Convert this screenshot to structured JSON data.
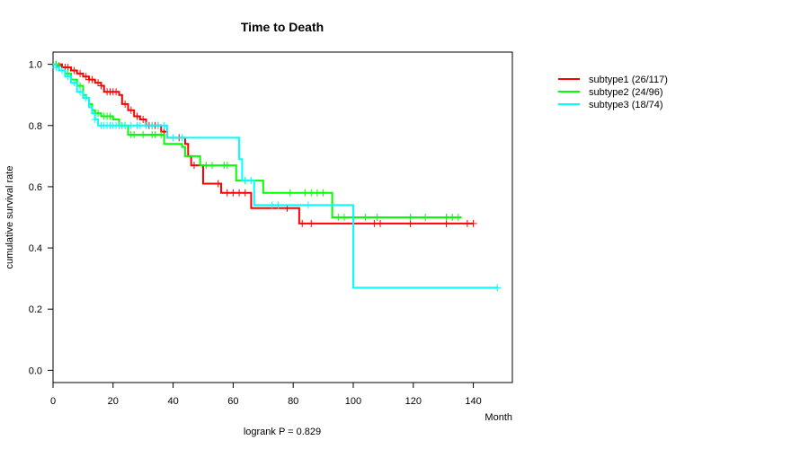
{
  "chart_data": {
    "type": "line",
    "title": "Time to Death",
    "xlabel": "Month",
    "ylabel": "cumulative survival rate",
    "footnote": "logrank P = 0.829",
    "xlim": [
      0,
      153
    ],
    "ylim": [
      -0.04,
      1.04
    ],
    "x_ticks": [
      0,
      20,
      40,
      60,
      80,
      100,
      120,
      140
    ],
    "y_ticks": [
      0.0,
      0.2,
      0.4,
      0.6,
      0.8,
      1.0
    ],
    "y_tick_labels": [
      "0.0",
      "0.2",
      "0.4",
      "0.6",
      "0.8",
      "1.0"
    ],
    "legend_position": "right",
    "series": [
      {
        "name": "subtype1",
        "legend_label": "subtype1 (26/117)",
        "color": "#ff0000",
        "steps": [
          [
            0,
            1.0
          ],
          [
            3,
            0.99
          ],
          [
            6,
            0.98
          ],
          [
            8,
            0.97
          ],
          [
            10,
            0.96
          ],
          [
            12,
            0.95
          ],
          [
            14,
            0.94
          ],
          [
            16,
            0.93
          ],
          [
            17,
            0.91
          ],
          [
            22,
            0.9
          ],
          [
            23,
            0.87
          ],
          [
            25,
            0.85
          ],
          [
            27,
            0.83
          ],
          [
            29,
            0.82
          ],
          [
            31,
            0.8
          ],
          [
            36,
            0.78
          ],
          [
            38,
            0.76
          ],
          [
            44,
            0.74
          ],
          [
            45,
            0.7
          ],
          [
            46,
            0.67
          ],
          [
            50,
            0.61
          ],
          [
            56,
            0.58
          ],
          [
            66,
            0.53
          ],
          [
            82,
            0.48
          ],
          [
            140,
            0.48
          ]
        ],
        "censored": [
          [
            1,
            1.0
          ],
          [
            2,
            0.995
          ],
          [
            4,
            0.99
          ],
          [
            5,
            0.99
          ],
          [
            7,
            0.98
          ],
          [
            9,
            0.97
          ],
          [
            11,
            0.96
          ],
          [
            12,
            0.95
          ],
          [
            13,
            0.95
          ],
          [
            15,
            0.94
          ],
          [
            16,
            0.93
          ],
          [
            18,
            0.91
          ],
          [
            19,
            0.91
          ],
          [
            20,
            0.91
          ],
          [
            21,
            0.91
          ],
          [
            24,
            0.87
          ],
          [
            26,
            0.85
          ],
          [
            28,
            0.83
          ],
          [
            30,
            0.82
          ],
          [
            32,
            0.8
          ],
          [
            33,
            0.8
          ],
          [
            34,
            0.8
          ],
          [
            35,
            0.8
          ],
          [
            37,
            0.78
          ],
          [
            42,
            0.76
          ],
          [
            47,
            0.67
          ],
          [
            55,
            0.61
          ],
          [
            58,
            0.58
          ],
          [
            60,
            0.58
          ],
          [
            62,
            0.58
          ],
          [
            64,
            0.58
          ],
          [
            78,
            0.53
          ],
          [
            83,
            0.48
          ],
          [
            86,
            0.48
          ],
          [
            107,
            0.48
          ],
          [
            109,
            0.48
          ],
          [
            119,
            0.48
          ],
          [
            131,
            0.48
          ],
          [
            138,
            0.48
          ],
          [
            140,
            0.48
          ]
        ]
      },
      {
        "name": "subtype2",
        "legend_label": "subtype2 (24/96)",
        "color": "#00ff00",
        "steps": [
          [
            0,
            1.0
          ],
          [
            2,
            0.98
          ],
          [
            4,
            0.97
          ],
          [
            6,
            0.95
          ],
          [
            8,
            0.93
          ],
          [
            10,
            0.9
          ],
          [
            11,
            0.89
          ],
          [
            12,
            0.87
          ],
          [
            13,
            0.85
          ],
          [
            14,
            0.84
          ],
          [
            16,
            0.83
          ],
          [
            20,
            0.82
          ],
          [
            22,
            0.8
          ],
          [
            25,
            0.77
          ],
          [
            32,
            0.77
          ],
          [
            37,
            0.74
          ],
          [
            43,
            0.73
          ],
          [
            44,
            0.7
          ],
          [
            49,
            0.67
          ],
          [
            61,
            0.62
          ],
          [
            70,
            0.58
          ],
          [
            93,
            0.5
          ],
          [
            136,
            0.5
          ]
        ],
        "censored": [
          [
            1,
            1.0
          ],
          [
            3,
            0.98
          ],
          [
            5,
            0.97
          ],
          [
            9,
            0.93
          ],
          [
            15,
            0.84
          ],
          [
            17,
            0.83
          ],
          [
            18,
            0.83
          ],
          [
            19,
            0.83
          ],
          [
            23,
            0.8
          ],
          [
            24,
            0.8
          ],
          [
            26,
            0.77
          ],
          [
            27,
            0.77
          ],
          [
            30,
            0.77
          ],
          [
            33,
            0.77
          ],
          [
            34,
            0.77
          ],
          [
            36,
            0.77
          ],
          [
            51,
            0.67
          ],
          [
            53,
            0.67
          ],
          [
            57,
            0.67
          ],
          [
            58,
            0.67
          ],
          [
            64,
            0.62
          ],
          [
            79,
            0.58
          ],
          [
            84,
            0.58
          ],
          [
            86,
            0.58
          ],
          [
            88,
            0.58
          ],
          [
            90,
            0.58
          ],
          [
            95,
            0.5
          ],
          [
            97,
            0.5
          ],
          [
            104,
            0.5
          ],
          [
            108,
            0.5
          ],
          [
            119,
            0.5
          ],
          [
            124,
            0.5
          ],
          [
            131,
            0.5
          ],
          [
            133,
            0.5
          ],
          [
            135,
            0.5
          ]
        ]
      },
      {
        "name": "subtype3",
        "legend_label": "subtype3 (18/74)",
        "color": "#00ffff",
        "steps": [
          [
            0,
            1.0
          ],
          [
            1,
            0.99
          ],
          [
            2,
            0.98
          ],
          [
            4,
            0.96
          ],
          [
            6,
            0.94
          ],
          [
            8,
            0.91
          ],
          [
            10,
            0.89
          ],
          [
            12,
            0.86
          ],
          [
            13,
            0.84
          ],
          [
            14,
            0.82
          ],
          [
            15,
            0.8
          ],
          [
            38,
            0.76
          ],
          [
            62,
            0.69
          ],
          [
            63,
            0.62
          ],
          [
            67,
            0.54
          ],
          [
            100,
            0.27
          ],
          [
            148,
            0.27
          ]
        ],
        "censored": [
          [
            1,
            0.99
          ],
          [
            3,
            0.98
          ],
          [
            5,
            0.96
          ],
          [
            7,
            0.94
          ],
          [
            9,
            0.91
          ],
          [
            11,
            0.89
          ],
          [
            14,
            0.82
          ],
          [
            16,
            0.8
          ],
          [
            17,
            0.8
          ],
          [
            18,
            0.8
          ],
          [
            19,
            0.8
          ],
          [
            20,
            0.8
          ],
          [
            21,
            0.8
          ],
          [
            22,
            0.8
          ],
          [
            24,
            0.8
          ],
          [
            26,
            0.8
          ],
          [
            28,
            0.8
          ],
          [
            29,
            0.8
          ],
          [
            31,
            0.8
          ],
          [
            33,
            0.8
          ],
          [
            35,
            0.8
          ],
          [
            37,
            0.8
          ],
          [
            40,
            0.76
          ],
          [
            43,
            0.76
          ],
          [
            64,
            0.62
          ],
          [
            66,
            0.62
          ],
          [
            73,
            0.54
          ],
          [
            75,
            0.54
          ],
          [
            85,
            0.54
          ],
          [
            148,
            0.27
          ]
        ]
      }
    ]
  }
}
